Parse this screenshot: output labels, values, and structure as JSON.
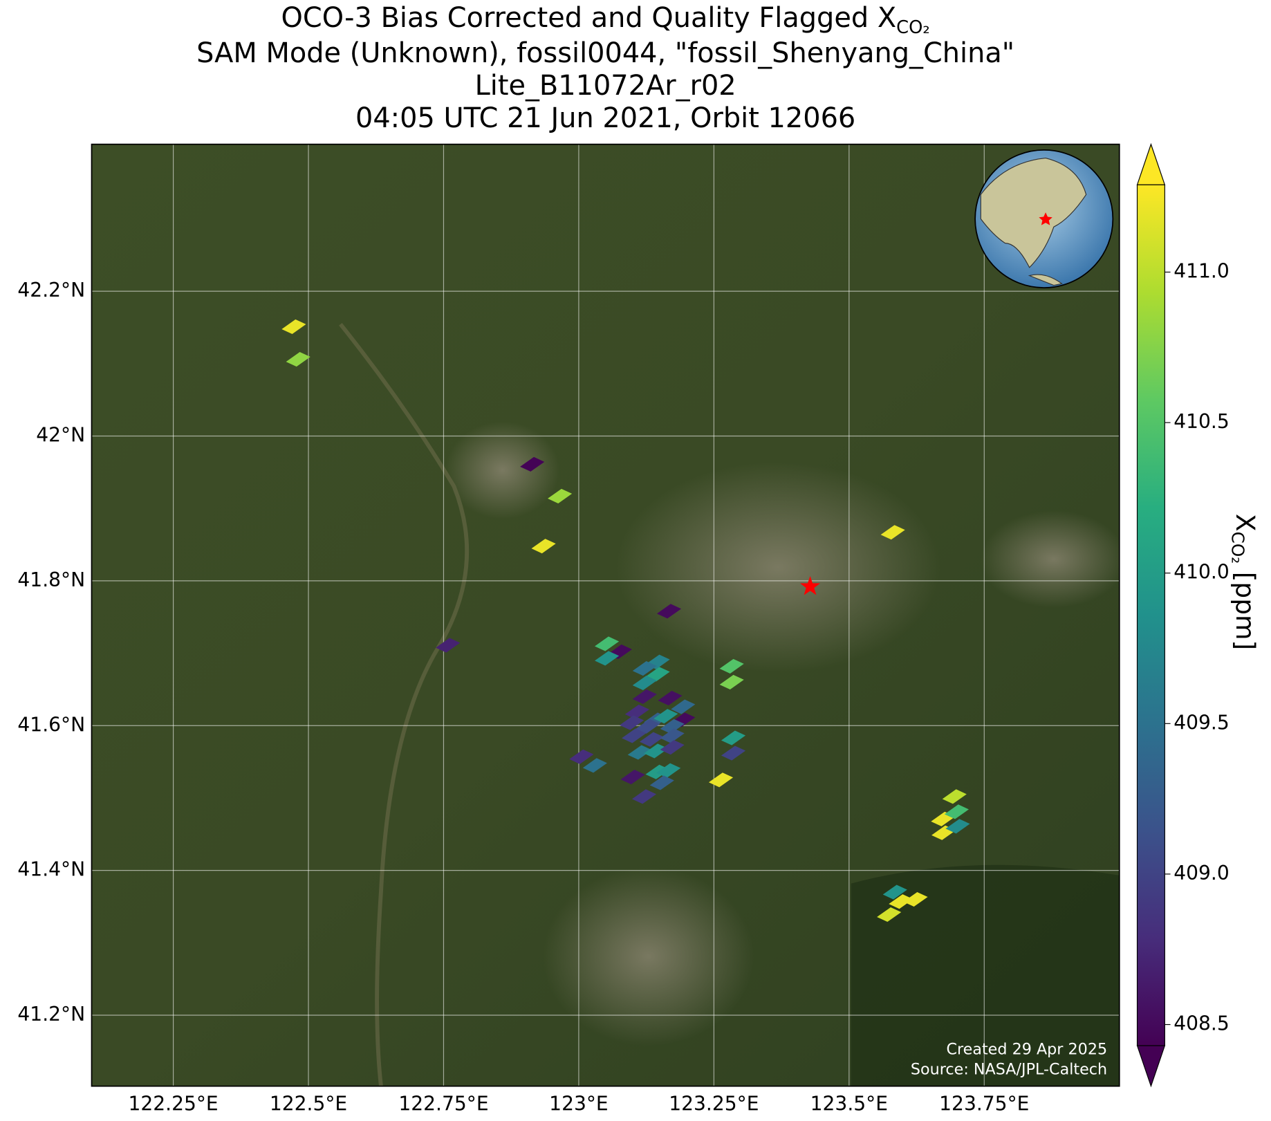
{
  "chart_data": {
    "type": "scatter",
    "title": [
      "OCO-3 Bias Corrected and Quality Flagged X",
      "SAM Mode (Unknown), fossil0044, \"fossil_Shenyang_China\"",
      "Lite_B11072Ar_r02",
      "04:05 UTC 21 Jun 2021, Orbit 12066"
    ],
    "title_subscript": "CO₂",
    "xlim": [
      122.099,
      124.0
    ],
    "ylim": [
      41.102,
      42.403
    ],
    "xticks": [
      {
        "value": 122.25,
        "label": "122.25°E"
      },
      {
        "value": 122.5,
        "label": "122.5°E"
      },
      {
        "value": 122.75,
        "label": "122.75°E"
      },
      {
        "value": 123,
        "label": "123°E"
      },
      {
        "value": 123.25,
        "label": "123.25°E"
      },
      {
        "value": 123.5,
        "label": "123.5°E"
      },
      {
        "value": 123.75,
        "label": "123.75°E"
      }
    ],
    "yticks": [
      {
        "value": 42.2,
        "label": "42.2°N"
      },
      {
        "value": 42.0,
        "label": "42°N"
      },
      {
        "value": 41.8,
        "label": "41.8°N"
      },
      {
        "value": 41.6,
        "label": "41.6°N"
      },
      {
        "value": 41.4,
        "label": "41.4°N"
      },
      {
        "value": 41.2,
        "label": "41.2°N"
      }
    ],
    "grid": true,
    "x": [
      122.473,
      122.481,
      122.914,
      122.965,
      122.935,
      123.581,
      123.167,
      122.758,
      123.052,
      123.076,
      123.052,
      123.146,
      123.122,
      123.146,
      123.122,
      123.283,
      123.283,
      123.122,
      123.169,
      123.193,
      123.108,
      123.143,
      123.161,
      123.193,
      123.098,
      123.128,
      123.173,
      123.102,
      123.135,
      123.173,
      123.113,
      123.143,
      123.173,
      123.286,
      123.286,
      123.005,
      123.03,
      123.1,
      123.146,
      123.166,
      123.154,
      123.121,
      123.263,
      123.695,
      123.674,
      123.699,
      123.675,
      123.701,
      123.585,
      123.596,
      123.623,
      123.574
    ],
    "y": [
      42.151,
      42.106,
      41.961,
      41.917,
      41.848,
      41.867,
      41.758,
      41.711,
      41.713,
      41.702,
      41.693,
      41.688,
      41.679,
      41.671,
      41.659,
      41.682,
      41.66,
      41.64,
      41.638,
      41.626,
      41.619,
      41.608,
      41.613,
      41.608,
      41.604,
      41.599,
      41.599,
      41.586,
      41.581,
      41.586,
      41.563,
      41.565,
      41.57,
      41.583,
      41.562,
      41.557,
      41.545,
      41.529,
      41.536,
      41.538,
      41.521,
      41.502,
      41.525,
      41.502,
      41.471,
      41.481,
      41.452,
      41.461,
      41.37,
      41.357,
      41.36,
      41.339
    ],
    "values": [
      411.2,
      410.8,
      408.45,
      410.85,
      411.2,
      411.2,
      408.5,
      408.7,
      410.4,
      408.5,
      409.9,
      409.7,
      409.5,
      410.1,
      409.8,
      410.5,
      410.7,
      408.6,
      408.55,
      409.4,
      408.8,
      409.3,
      409.9,
      408.5,
      408.9,
      409.1,
      409.3,
      409.0,
      409.0,
      409.2,
      409.6,
      409.9,
      408.9,
      410.0,
      409.0,
      408.8,
      409.5,
      408.6,
      410.0,
      409.9,
      409.3,
      408.9,
      411.2,
      411.0,
      411.2,
      410.4,
      411.2,
      409.8,
      409.9,
      411.2,
      411.2,
      411.1
    ],
    "target": {
      "x": 123.428,
      "y": 41.792,
      "color": "#ff0000"
    },
    "colormap": [
      "#440154",
      "#472d7b",
      "#3b528b",
      "#2c728e",
      "#21918c",
      "#28ae80",
      "#5ec962",
      "#addc30",
      "#fde725"
    ],
    "clim": [
      408.43,
      411.29
    ],
    "colorbar_ticks": [
      {
        "value": 411.0,
        "label": "411.0"
      },
      410.5,
      {
        "value": 410.0,
        "label": "410.0"
      },
      409.5,
      {
        "value": 409.0,
        "label": "409.0"
      },
      408.5
    ],
    "colorbar_label": {
      "text": "X",
      "subscript": "CO₂",
      "units": "[ppm]"
    },
    "footer": [
      "Created 29 Apr 2025",
      "Source: NASA/JPL-Caltech"
    ]
  }
}
